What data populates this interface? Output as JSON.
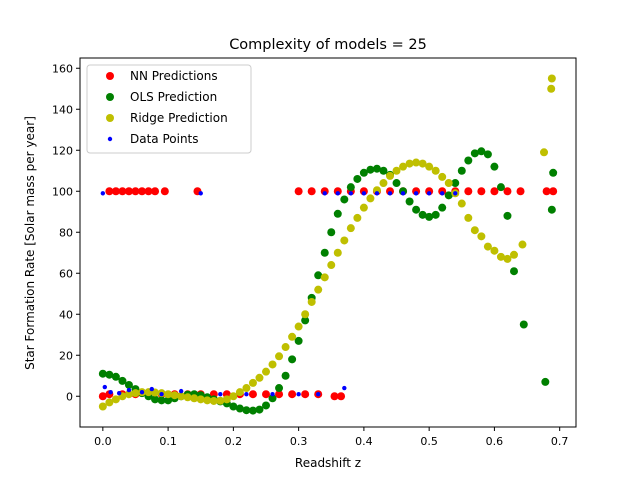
{
  "chart_data": {
    "type": "scatter",
    "title": "Complexity of models = 25",
    "xlabel": "Readshift z",
    "ylabel": "Star Formation Rate [Solar mass per year]",
    "xlim": [
      -0.035,
      0.725
    ],
    "ylim": [
      -15,
      165
    ],
    "xticks": [
      0.0,
      0.1,
      0.2,
      0.3,
      0.4,
      0.5,
      0.6,
      0.7
    ],
    "xtick_labels": [
      "0.0",
      "0.1",
      "0.2",
      "0.3",
      "0.4",
      "0.5",
      "0.6",
      "0.7"
    ],
    "yticks": [
      0,
      20,
      40,
      60,
      80,
      100,
      120,
      140,
      160
    ],
    "ytick_labels": [
      "0",
      "20",
      "40",
      "60",
      "80",
      "100",
      "120",
      "140",
      "160"
    ],
    "grid": false,
    "legend_position": "top-left",
    "series": [
      {
        "name": "NN Predictions",
        "color": "#ff0000",
        "marker": "large-dot",
        "points": [
          [
            0.0,
            0
          ],
          [
            0.01,
            100
          ],
          [
            0.02,
            100
          ],
          [
            0.03,
            100
          ],
          [
            0.04,
            100
          ],
          [
            0.05,
            100
          ],
          [
            0.06,
            100
          ],
          [
            0.07,
            100
          ],
          [
            0.08,
            100
          ],
          [
            0.095,
            100
          ],
          [
            0.145,
            100
          ],
          [
            0.3,
            100
          ],
          [
            0.32,
            100
          ],
          [
            0.34,
            100
          ],
          [
            0.36,
            100
          ],
          [
            0.38,
            100
          ],
          [
            0.4,
            100
          ],
          [
            0.42,
            100
          ],
          [
            0.44,
            100
          ],
          [
            0.46,
            100
          ],
          [
            0.48,
            100
          ],
          [
            0.5,
            100
          ],
          [
            0.52,
            100
          ],
          [
            0.54,
            100
          ],
          [
            0.56,
            100
          ],
          [
            0.58,
            100
          ],
          [
            0.6,
            100
          ],
          [
            0.62,
            100
          ],
          [
            0.64,
            100
          ],
          [
            0.68,
            100
          ],
          [
            0.69,
            100
          ],
          [
            0.01,
            1
          ],
          [
            0.03,
            1
          ],
          [
            0.05,
            1
          ],
          [
            0.07,
            1
          ],
          [
            0.09,
            1
          ],
          [
            0.11,
            1
          ],
          [
            0.13,
            1
          ],
          [
            0.15,
            1
          ],
          [
            0.17,
            1
          ],
          [
            0.19,
            1
          ],
          [
            0.21,
            1
          ],
          [
            0.23,
            1
          ],
          [
            0.25,
            1
          ],
          [
            0.27,
            1
          ],
          [
            0.29,
            1
          ],
          [
            0.31,
            1
          ],
          [
            0.33,
            1
          ],
          [
            0.355,
            0
          ],
          [
            0.365,
            0
          ]
        ]
      },
      {
        "name": "OLS Prediction",
        "color": "#008000",
        "marker": "large-dot",
        "points": [
          [
            0.0,
            11
          ],
          [
            0.01,
            10.5
          ],
          [
            0.02,
            9.5
          ],
          [
            0.03,
            7.5
          ],
          [
            0.04,
            5.5
          ],
          [
            0.05,
            3.5
          ],
          [
            0.06,
            1.5
          ],
          [
            0.07,
            0
          ],
          [
            0.08,
            -1.5
          ],
          [
            0.09,
            -2
          ],
          [
            0.1,
            -2
          ],
          [
            0.11,
            -1
          ],
          [
            0.12,
            0
          ],
          [
            0.13,
            0.8
          ],
          [
            0.14,
            1
          ],
          [
            0.15,
            0.5
          ],
          [
            0.16,
            -0.5
          ],
          [
            0.17,
            -1.5
          ],
          [
            0.18,
            -2.5
          ],
          [
            0.19,
            -3.5
          ],
          [
            0.2,
            -5
          ],
          [
            0.21,
            -6
          ],
          [
            0.22,
            -6.8
          ],
          [
            0.23,
            -7
          ],
          [
            0.24,
            -6.5
          ],
          [
            0.25,
            -4.5
          ],
          [
            0.26,
            -1
          ],
          [
            0.27,
            4
          ],
          [
            0.28,
            10
          ],
          [
            0.29,
            18
          ],
          [
            0.3,
            27
          ],
          [
            0.31,
            37
          ],
          [
            0.32,
            48
          ],
          [
            0.33,
            59
          ],
          [
            0.34,
            70
          ],
          [
            0.35,
            80
          ],
          [
            0.36,
            89
          ],
          [
            0.37,
            96
          ],
          [
            0.38,
            102
          ],
          [
            0.39,
            106
          ],
          [
            0.4,
            109
          ],
          [
            0.41,
            110.5
          ],
          [
            0.42,
            111
          ],
          [
            0.43,
            110
          ],
          [
            0.44,
            108
          ],
          [
            0.45,
            104
          ],
          [
            0.46,
            100
          ],
          [
            0.47,
            95
          ],
          [
            0.48,
            91
          ],
          [
            0.49,
            88.5
          ],
          [
            0.5,
            87.5
          ],
          [
            0.51,
            88.5
          ],
          [
            0.52,
            92
          ],
          [
            0.53,
            98
          ],
          [
            0.54,
            104
          ],
          [
            0.55,
            110
          ],
          [
            0.56,
            115
          ],
          [
            0.57,
            118.5
          ],
          [
            0.58,
            119.5
          ],
          [
            0.59,
            118
          ],
          [
            0.6,
            112
          ],
          [
            0.61,
            102
          ],
          [
            0.62,
            88
          ],
          [
            0.63,
            61
          ],
          [
            0.645,
            35
          ],
          [
            0.678,
            7
          ],
          [
            0.688,
            91
          ],
          [
            0.69,
            109
          ]
        ]
      },
      {
        "name": "Ridge Prediction",
        "color": "#bfbf00",
        "marker": "large-dot",
        "points": [
          [
            0.0,
            -5
          ],
          [
            0.01,
            -3
          ],
          [
            0.02,
            -1.5
          ],
          [
            0.03,
            0
          ],
          [
            0.04,
            1
          ],
          [
            0.05,
            1.5
          ],
          [
            0.06,
            2
          ],
          [
            0.07,
            2
          ],
          [
            0.08,
            1.8
          ],
          [
            0.09,
            1.5
          ],
          [
            0.1,
            1
          ],
          [
            0.11,
            0.5
          ],
          [
            0.12,
            0
          ],
          [
            0.13,
            -0.5
          ],
          [
            0.14,
            -1
          ],
          [
            0.15,
            -1.5
          ],
          [
            0.16,
            -2
          ],
          [
            0.17,
            -2.3
          ],
          [
            0.18,
            -2.2
          ],
          [
            0.19,
            -1.5
          ],
          [
            0.2,
            0
          ],
          [
            0.21,
            2
          ],
          [
            0.22,
            4
          ],
          [
            0.23,
            6.5
          ],
          [
            0.24,
            9
          ],
          [
            0.25,
            12
          ],
          [
            0.26,
            15.5
          ],
          [
            0.27,
            19.5
          ],
          [
            0.28,
            24
          ],
          [
            0.29,
            29
          ],
          [
            0.3,
            34
          ],
          [
            0.31,
            40
          ],
          [
            0.32,
            46
          ],
          [
            0.33,
            52
          ],
          [
            0.34,
            58
          ],
          [
            0.35,
            64
          ],
          [
            0.36,
            70
          ],
          [
            0.37,
            76
          ],
          [
            0.38,
            82
          ],
          [
            0.39,
            87
          ],
          [
            0.4,
            92
          ],
          [
            0.41,
            96.5
          ],
          [
            0.42,
            100.5
          ],
          [
            0.43,
            104
          ],
          [
            0.44,
            107.5
          ],
          [
            0.45,
            110
          ],
          [
            0.46,
            112
          ],
          [
            0.47,
            113.5
          ],
          [
            0.48,
            114
          ],
          [
            0.49,
            113.5
          ],
          [
            0.5,
            112
          ],
          [
            0.51,
            110
          ],
          [
            0.52,
            107
          ],
          [
            0.53,
            104
          ],
          [
            0.54,
            99
          ],
          [
            0.55,
            94
          ],
          [
            0.56,
            87
          ],
          [
            0.57,
            81
          ],
          [
            0.58,
            78
          ],
          [
            0.59,
            73
          ],
          [
            0.6,
            71
          ],
          [
            0.61,
            68
          ],
          [
            0.62,
            67
          ],
          [
            0.63,
            69
          ],
          [
            0.643,
            74
          ],
          [
            0.676,
            119
          ],
          [
            0.687,
            150
          ],
          [
            0.688,
            155
          ]
        ]
      },
      {
        "name": "Data Points",
        "color": "#0000ff",
        "marker": "small-dot",
        "points": [
          [
            0.0,
            99
          ],
          [
            0.003,
            4.5
          ],
          [
            0.012,
            2
          ],
          [
            0.025,
            1.5
          ],
          [
            0.04,
            3
          ],
          [
            0.06,
            2
          ],
          [
            0.075,
            3.5
          ],
          [
            0.09,
            1
          ],
          [
            0.12,
            2.5
          ],
          [
            0.15,
            99
          ],
          [
            0.18,
            1
          ],
          [
            0.22,
            1
          ],
          [
            0.26,
            1
          ],
          [
            0.3,
            1
          ],
          [
            0.33,
            1
          ],
          [
            0.34,
            99
          ],
          [
            0.36,
            99
          ],
          [
            0.38,
            99
          ],
          [
            0.4,
            99
          ],
          [
            0.42,
            99
          ],
          [
            0.44,
            99
          ],
          [
            0.46,
            99
          ],
          [
            0.48,
            99
          ],
          [
            0.5,
            99
          ],
          [
            0.52,
            99
          ],
          [
            0.54,
            99
          ],
          [
            0.37,
            4
          ]
        ]
      }
    ]
  }
}
